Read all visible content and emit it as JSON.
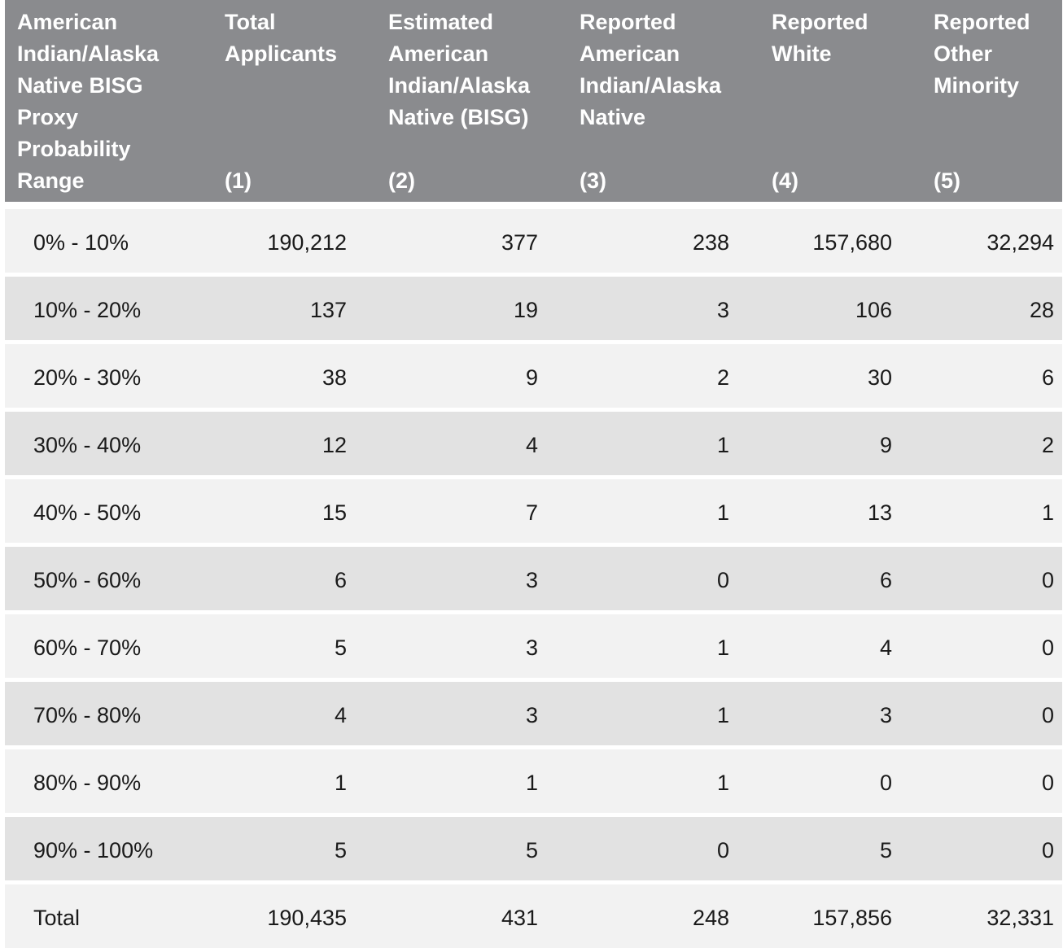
{
  "header": {
    "columns": [
      {
        "title": "American\nIndian/Alaska\nNative BISG\nProxy\nProbability\nRange",
        "number": ""
      },
      {
        "title": "Total\nApplicants",
        "number": "(1)"
      },
      {
        "title": "Estimated\nAmerican\nIndian/Alaska\nNative (BISG)",
        "number": "(2)"
      },
      {
        "title": "Reported\nAmerican\nIndian/Alaska\nNative",
        "number": "(3)"
      },
      {
        "title": "Reported\nWhite",
        "number": "(4)"
      },
      {
        "title": "Reported\nOther\nMinority",
        "number": "(5)"
      }
    ]
  },
  "rows": [
    {
      "label": "0% - 10%",
      "c1": "190,212",
      "c2": "377",
      "c3": "238",
      "c4": "157,680",
      "c5": "32,294"
    },
    {
      "label": "10% - 20%",
      "c1": "137",
      "c2": "19",
      "c3": "3",
      "c4": "106",
      "c5": "28"
    },
    {
      "label": "20% - 30%",
      "c1": "38",
      "c2": "9",
      "c3": "2",
      "c4": "30",
      "c5": "6"
    },
    {
      "label": "30% - 40%",
      "c1": "12",
      "c2": "4",
      "c3": "1",
      "c4": "9",
      "c5": "2"
    },
    {
      "label": "40% - 50%",
      "c1": "15",
      "c2": "7",
      "c3": "1",
      "c4": "13",
      "c5": "1"
    },
    {
      "label": "50% - 60%",
      "c1": "6",
      "c2": "3",
      "c3": "0",
      "c4": "6",
      "c5": "0"
    },
    {
      "label": "60% - 70%",
      "c1": "5",
      "c2": "3",
      "c3": "1",
      "c4": "4",
      "c5": "0"
    },
    {
      "label": "70% - 80%",
      "c1": "4",
      "c2": "3",
      "c3": "1",
      "c4": "3",
      "c5": "0"
    },
    {
      "label": "80% - 90%",
      "c1": "1",
      "c2": "1",
      "c3": "1",
      "c4": "0",
      "c5": "0"
    },
    {
      "label": "90% - 100%",
      "c1": "5",
      "c2": "5",
      "c3": "0",
      "c4": "5",
      "c5": "0"
    },
    {
      "label": "Total",
      "c1": "190,435",
      "c2": "431",
      "c3": "248",
      "c4": "157,856",
      "c5": "32,331"
    }
  ],
  "colors": {
    "header_bg": "#8a8b8e",
    "header_text": "#ffffff",
    "row_light": "#f2f2f2",
    "row_dark": "#e2e2e2"
  }
}
